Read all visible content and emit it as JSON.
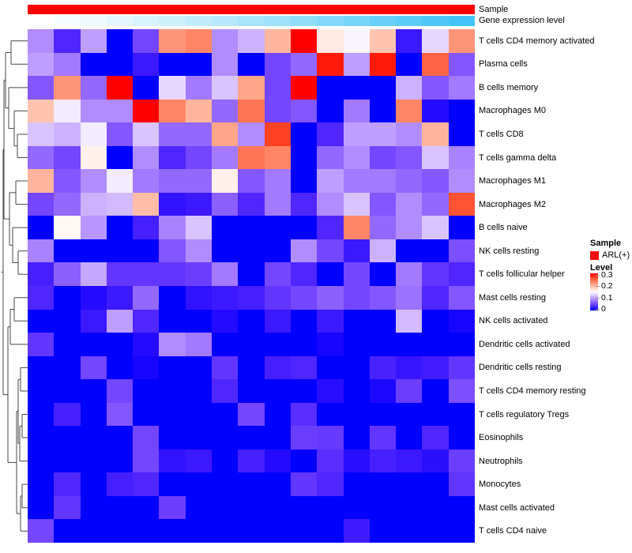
{
  "figure": {
    "background": "#ffffff",
    "annotation_rows": [
      {
        "label": "Sample",
        "type": "solid",
        "color": "#fe0000"
      },
      {
        "label": "Gene expression level",
        "type": "gradient",
        "start_color": "#ffffff",
        "end_color": "#41c4f7"
      }
    ],
    "legend": {
      "sample_title": "Sample",
      "sample_items": [
        {
          "label": "ARL(+)",
          "color": "#fb0b0b"
        }
      ],
      "level_title": "Level",
      "level_ticks": [
        {
          "label": "0.3",
          "value": 0.3
        },
        {
          "label": "0.2",
          "value": 0.2
        },
        {
          "label": "0.1",
          "value": 0.1
        },
        {
          "label": "0",
          "value": 0
        }
      ]
    }
  },
  "chart_data": {
    "type": "heatmap",
    "title": "",
    "rows": [
      "T cells CD4 memory activated",
      "Plasma cells",
      "B cells memory",
      "Macrophages M0",
      "T cells CD8",
      "T cells gamma delta",
      "Macrophages M1",
      "Macrophages M2",
      "B cells naive",
      "NK cells resting",
      "T cells follicular helper",
      "Mast cells resting",
      "NK cells activated",
      "Dendritic cells activated",
      "Dendritic cells resting",
      "T cells CD4 memory resting",
      "T cells regulatory Tregs",
      "Eosinophils",
      "Neutrophils",
      "Monocytes",
      "Mast cells activated",
      "T cells CD4 naive"
    ],
    "n_columns": 17,
    "column_labels_shown": false,
    "row_dendrogram": true,
    "colorscale": {
      "min": 0,
      "mid": 0.15,
      "max": 0.3,
      "min_color": "#0000ff",
      "mid_color": "#ffffff",
      "max_color": "#ff0000"
    },
    "column_annotations": {
      "Sample": "ARL(+) for every column",
      "Gene expression level": "increases left to right (white to cyan)"
    },
    "values": [
      [
        0.09,
        0.03,
        0.1,
        0.0,
        0.05,
        0.22,
        0.23,
        0.09,
        0.11,
        0.2,
        0.3,
        0.165,
        0.145,
        0.19,
        0.02,
        0.13,
        0.22
      ],
      [
        0.1,
        0.08,
        0.0,
        0.0,
        0.02,
        0.0,
        0.0,
        0.09,
        0.0,
        0.05,
        0.07,
        0.29,
        0.1,
        0.29,
        0.0,
        0.25,
        0.06
      ],
      [
        0.06,
        0.22,
        0.07,
        0.3,
        0.0,
        0.13,
        0.08,
        0.12,
        0.21,
        0.05,
        0.3,
        0.0,
        0.0,
        0.0,
        0.11,
        0.06,
        0.08
      ],
      [
        0.19,
        0.14,
        0.09,
        0.09,
        0.3,
        0.23,
        0.2,
        0.07,
        0.24,
        0.05,
        0.06,
        0.0,
        0.08,
        0.0,
        0.23,
        0.01,
        0.0
      ],
      [
        0.12,
        0.11,
        0.14,
        0.06,
        0.12,
        0.07,
        0.07,
        0.21,
        0.09,
        0.27,
        0.0,
        0.03,
        0.1,
        0.1,
        0.09,
        0.2,
        0.0
      ],
      [
        0.07,
        0.05,
        0.16,
        0.0,
        0.09,
        0.03,
        0.05,
        0.08,
        0.24,
        0.23,
        0.0,
        0.07,
        0.09,
        0.05,
        0.06,
        0.12,
        0.085
      ],
      [
        0.2,
        0.06,
        0.09,
        0.14,
        0.08,
        0.07,
        0.07,
        0.16,
        0.06,
        0.08,
        0.0,
        0.1,
        0.08,
        0.08,
        0.07,
        0.06,
        0.09
      ],
      [
        0.05,
        0.07,
        0.11,
        0.115,
        0.195,
        0.015,
        0.02,
        0.065,
        0.03,
        0.08,
        0.03,
        0.09,
        0.12,
        0.06,
        0.09,
        0.07,
        0.26
      ],
      [
        0.0,
        0.155,
        0.095,
        0.0,
        0.025,
        0.085,
        0.12,
        0.0,
        0.0,
        0.0,
        0.0,
        0.03,
        0.23,
        0.07,
        0.09,
        0.12,
        0.0
      ],
      [
        0.085,
        0.0,
        0.0,
        0.0,
        0.0,
        0.06,
        0.09,
        0.0,
        0.0,
        0.0,
        0.09,
        0.05,
        0.02,
        0.11,
        0.0,
        0.0,
        0.055
      ],
      [
        0.025,
        0.065,
        0.105,
        0.04,
        0.04,
        0.04,
        0.045,
        0.08,
        0.0,
        0.05,
        0.03,
        0.0,
        0.05,
        0.0,
        0.08,
        0.04,
        0.03
      ],
      [
        0.03,
        0.0,
        0.01,
        0.02,
        0.07,
        0.0,
        0.015,
        0.02,
        0.025,
        0.04,
        0.05,
        0.065,
        0.05,
        0.06,
        0.075,
        0.03,
        0.06
      ],
      [
        0.0,
        0.0,
        0.02,
        0.1,
        0.03,
        0.0,
        0.0,
        0.01,
        0.0,
        0.02,
        0.0,
        0.02,
        0.0,
        0.0,
        0.115,
        0.0,
        0.005
      ],
      [
        0.04,
        0.0,
        0.0,
        0.0,
        0.01,
        0.09,
        0.08,
        0.0,
        0.0,
        0.0,
        0.0,
        0.005,
        0.0,
        0.0,
        0.0,
        0.0,
        0.0
      ],
      [
        0.0,
        0.0,
        0.05,
        0.0,
        0.005,
        0.0,
        0.0,
        0.04,
        0.0,
        0.025,
        0.03,
        0.0,
        0.0,
        0.027,
        0.018,
        0.023,
        0.04
      ],
      [
        0.0,
        0.0,
        0.0,
        0.05,
        0.0,
        0.0,
        0.0,
        0.03,
        0.0,
        0.0,
        0.0,
        0.012,
        0.0,
        0.007,
        0.045,
        0.0,
        0.055
      ],
      [
        0.0,
        0.025,
        0.0,
        0.06,
        0.0,
        0.0,
        0.0,
        0.0,
        0.05,
        0.0,
        0.035,
        0.0,
        0.0,
        0.0,
        0.0,
        0.0,
        0.0
      ],
      [
        0.0,
        0.0,
        0.0,
        0.0,
        0.05,
        0.0,
        0.0,
        0.0,
        0.0,
        0.0,
        0.045,
        0.042,
        0.0,
        0.04,
        0.0,
        0.03,
        0.0
      ],
      [
        0.0,
        0.0,
        0.0,
        0.0,
        0.05,
        0.015,
        0.02,
        0.0,
        0.025,
        0.01,
        0.0,
        0.035,
        0.012,
        0.025,
        0.02,
        0.013,
        0.045
      ],
      [
        0.0,
        0.03,
        0.0,
        0.025,
        0.03,
        0.0,
        0.0,
        0.0,
        0.0,
        0.0,
        0.04,
        0.03,
        0.0,
        0.0,
        0.0,
        0.0,
        0.04
      ],
      [
        0.0,
        0.04,
        0.0,
        0.0,
        0.0,
        0.045,
        0.0,
        0.0,
        0.0,
        0.0,
        0.0,
        0.0,
        0.0,
        0.0,
        0.0,
        0.0,
        0.0
      ],
      [
        0.05,
        0.0,
        0.0,
        0.0,
        0.0,
        0.0,
        0.0,
        0.0,
        0.0,
        0.0,
        0.0,
        0.0,
        0.022,
        0.0,
        0.0,
        0.0,
        0.0
      ]
    ]
  },
  "dendrogram": {
    "merges": [
      {
        "id": "m1",
        "a": 1,
        "b": 2,
        "x": 14
      },
      {
        "id": "m2",
        "a": 5,
        "b": 6,
        "x": 22
      },
      {
        "id": "m3",
        "a": 4,
        "b": "m2",
        "x": 18
      },
      {
        "id": "m4",
        "a": 3,
        "b": "m3",
        "x": 11
      },
      {
        "id": "m5",
        "a": "m1",
        "b": "m4",
        "x": 7
      },
      {
        "id": "m6",
        "a": 7,
        "b": 8,
        "x": 20
      },
      {
        "id": "m7",
        "a": 10,
        "b": 11,
        "x": 23
      },
      {
        "id": "m8",
        "a": 9,
        "b": "m7",
        "x": 16
      },
      {
        "id": "m9",
        "a": "m6",
        "b": "m8",
        "x": 12
      },
      {
        "id": "m10",
        "a": "m5",
        "b": "m9",
        "x": 5
      },
      {
        "id": "m11",
        "a": 12,
        "b": 13,
        "x": 18
      },
      {
        "id": "m12",
        "a": "m11",
        "b": 14,
        "x": 13
      },
      {
        "id": "m13",
        "a": 15,
        "b": 16,
        "x": 26
      },
      {
        "id": "m14",
        "a": 17,
        "b": 18,
        "x": 28
      },
      {
        "id": "m15",
        "a": "m14",
        "b": 19,
        "x": 25
      },
      {
        "id": "m16",
        "a": "m13",
        "b": "m15",
        "x": 23
      },
      {
        "id": "m17",
        "a": 20,
        "b": 21,
        "x": 28
      },
      {
        "id": "m18",
        "a": "m17",
        "b": 22,
        "x": 26
      },
      {
        "id": "m19",
        "a": "m16",
        "b": "m18",
        "x": 21
      },
      {
        "id": "m20",
        "a": "m12",
        "b": "m19",
        "x": 10
      },
      {
        "id": "root",
        "a": "m10",
        "b": "m20",
        "x": 4
      }
    ]
  }
}
